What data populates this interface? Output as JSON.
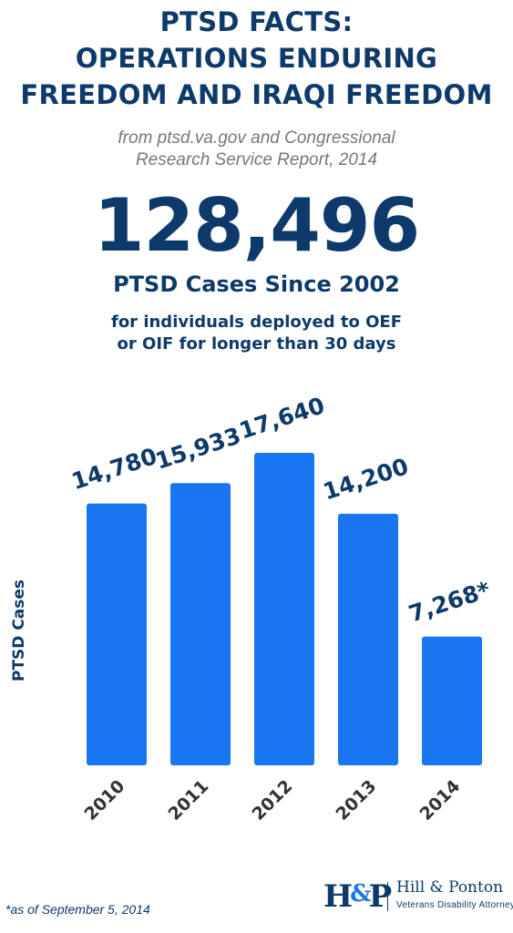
{
  "header": {
    "title_lines": [
      "PTSD FACTS:",
      "OPERATIONS ENDURING",
      "FREEDOM AND IRAQI FREEDOM"
    ],
    "source_lines": [
      "from ptsd.va.gov and Congressional",
      "Research Service Report, 2014"
    ]
  },
  "headline": {
    "number": "128,496",
    "label": "PTSD Cases Since 2002",
    "detail_lines": [
      "for individuals deployed to OEF",
      "or OIF for longer than 30 days"
    ]
  },
  "chart_data": {
    "type": "bar",
    "categories": [
      "2010",
      "2011",
      "2012",
      "2013",
      "2014"
    ],
    "values": [
      14780,
      15933,
      17640,
      14200,
      7268
    ],
    "data_labels": [
      "14,780",
      "15,933",
      "17,640",
      "14,200",
      "7,268*"
    ],
    "title": "",
    "xlabel": "",
    "ylabel": "PTSD Cases",
    "ylim": [
      0,
      17640
    ],
    "grid": false,
    "legend": "none",
    "bar_color": "#1a75f0",
    "label_color": "#0d3a6a"
  },
  "footnote": "*as of September 5, 2014",
  "logo": {
    "mark": "H&P",
    "name": "Hill & Ponton",
    "tagline": "Veterans Disability Attorneys"
  },
  "colors": {
    "primary": "#0d3a6a",
    "accent": "#1a75f0",
    "muted": "#777777"
  }
}
